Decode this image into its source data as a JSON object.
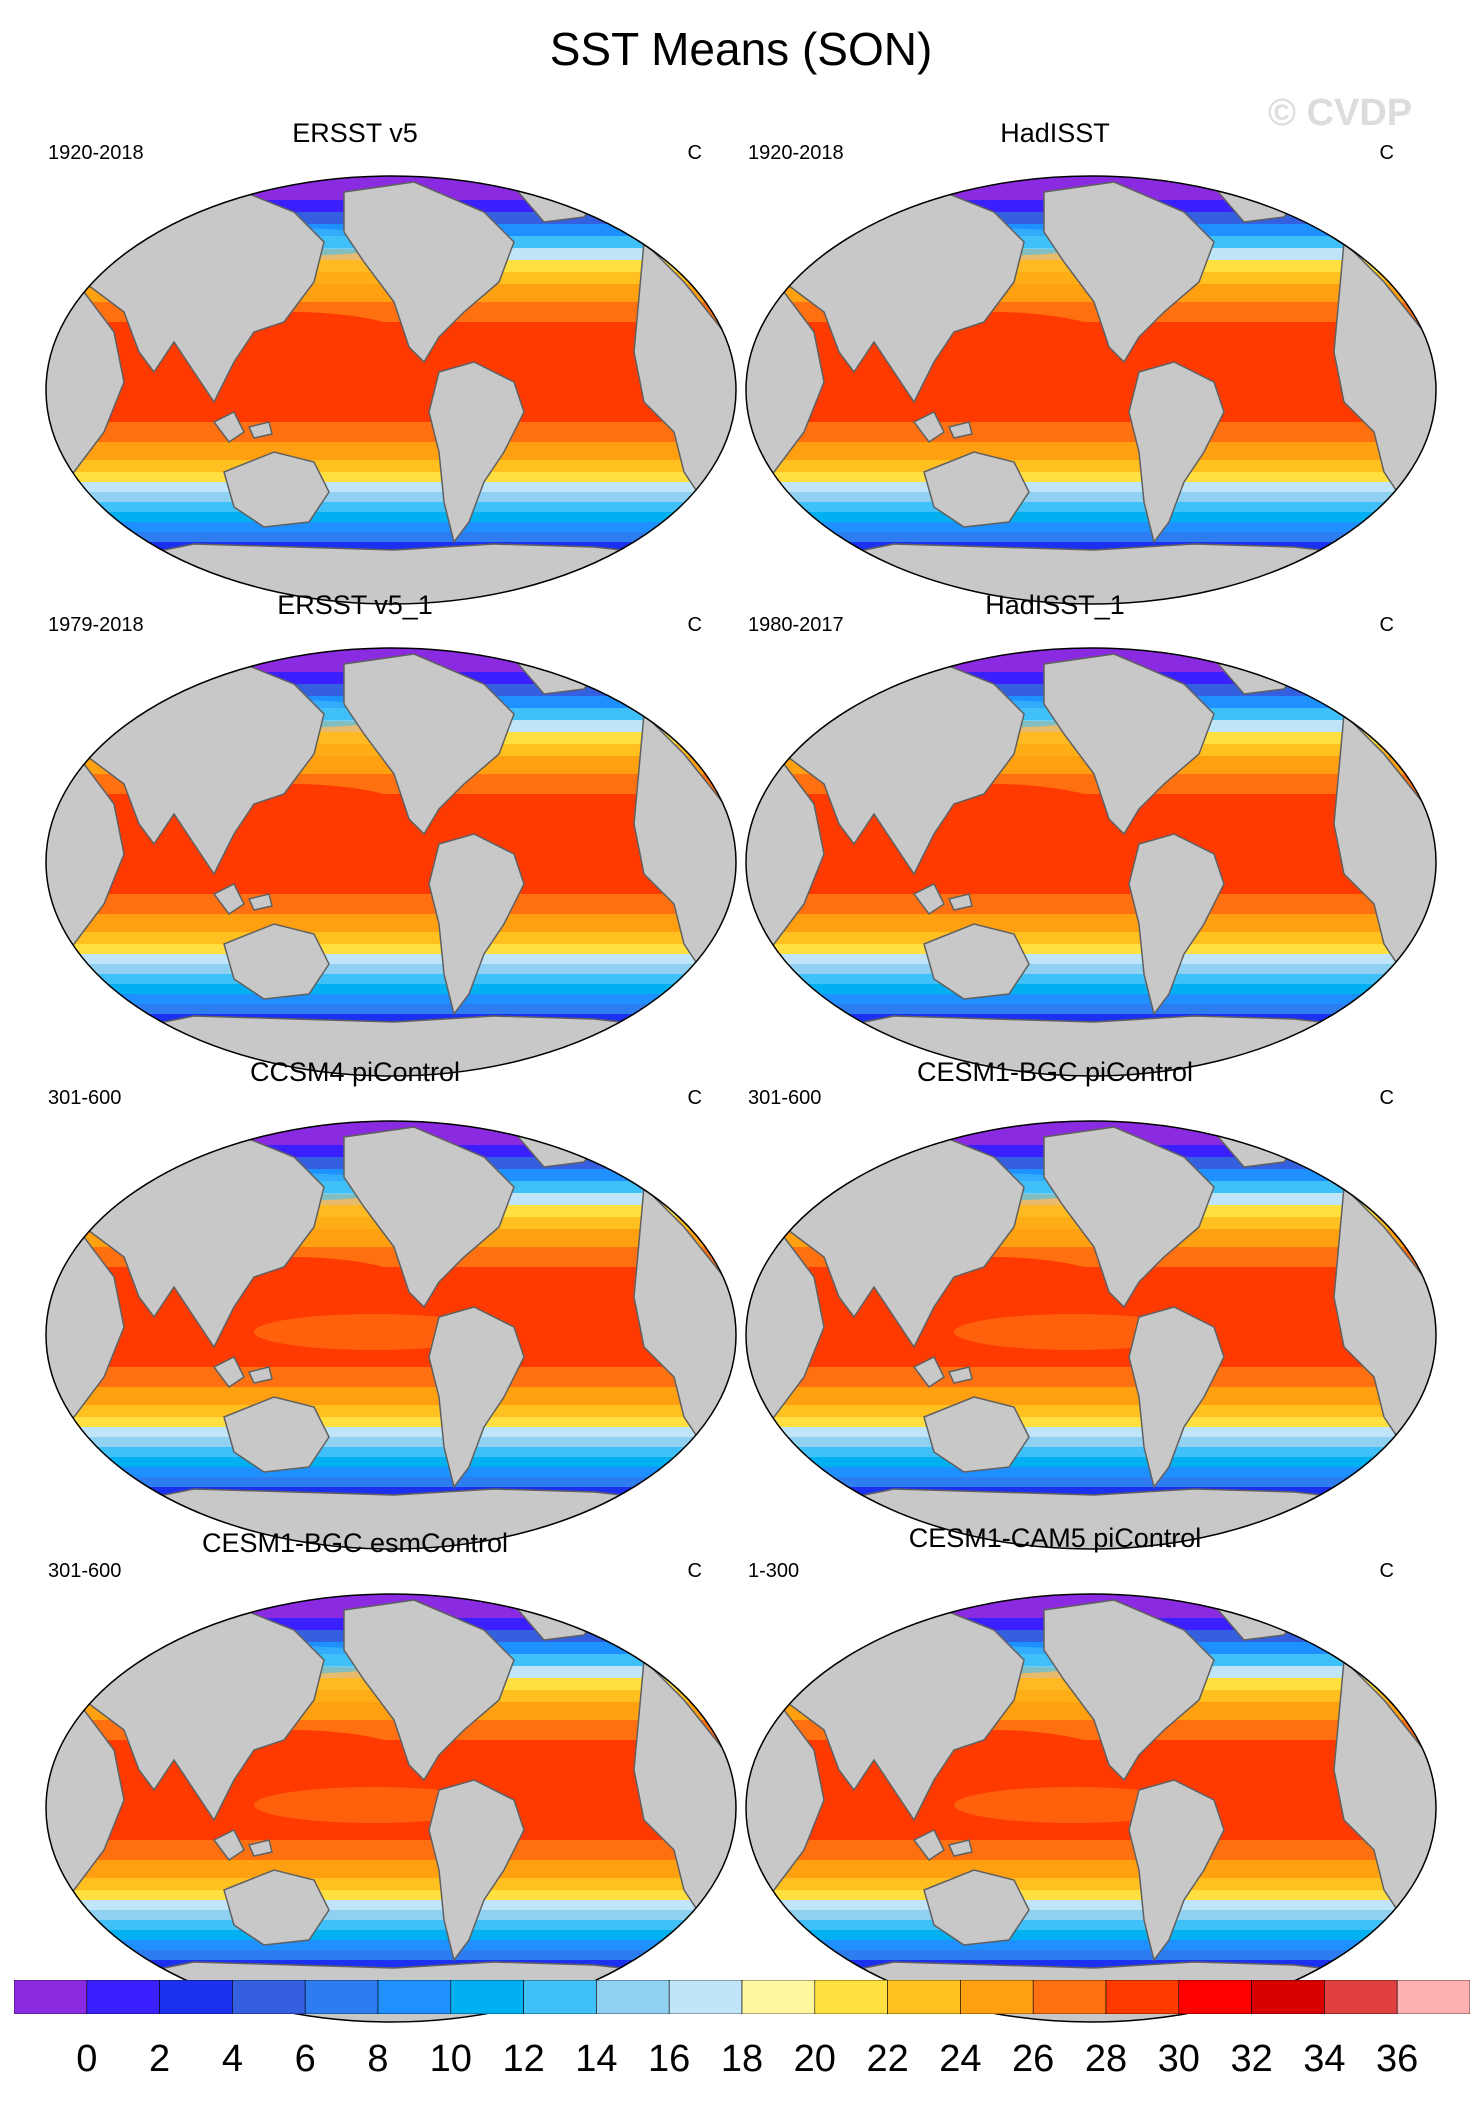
{
  "figure": {
    "title": "SST Means (SON)",
    "watermark": "© CVDP"
  },
  "panels": [
    {
      "title": "ERSST v5",
      "period": "1920-2018",
      "units": "C",
      "style": "obs"
    },
    {
      "title": "HadISST",
      "period": "1920-2018",
      "units": "C",
      "style": "obs"
    },
    {
      "title": "ERSST v5_1",
      "period": "1979-2018",
      "units": "C",
      "style": "obs"
    },
    {
      "title": "HadISST_1",
      "period": "1980-2017",
      "units": "C",
      "style": "obs"
    },
    {
      "title": "CCSM4 piControl",
      "period": "301-600",
      "units": "C",
      "style": "model"
    },
    {
      "title": "CESM1-BGC piControl",
      "period": "301-600",
      "units": "C",
      "style": "model"
    },
    {
      "title": "CESM1-BGC esmControl",
      "period": "301-600",
      "units": "C",
      "style": "model"
    },
    {
      "title": "CESM1-CAM5 piControl",
      "period": "1-300",
      "units": "C",
      "style": "model"
    }
  ],
  "colorbar": {
    "colors": [
      "#8a2be2",
      "#3a1fff",
      "#1c30f0",
      "#3460e0",
      "#2e7df0",
      "#1e90ff",
      "#00b0f0",
      "#40c0f8",
      "#90d0f0",
      "#c0e4f8",
      "#fff6a0",
      "#ffe040",
      "#ffc020",
      "#ffa010",
      "#ff7010",
      "#ff3a00",
      "#ff0000",
      "#d80000",
      "#e04040",
      "#ffb0b0"
    ],
    "labels": [
      "0",
      "2",
      "4",
      "6",
      "8",
      "10",
      "12",
      "14",
      "16",
      "18",
      "20",
      "22",
      "24",
      "26",
      "28",
      "30",
      "32",
      "34",
      "36"
    ]
  },
  "map_colors": {
    "land": "#c8c8c8",
    "coast": "#606060"
  }
}
